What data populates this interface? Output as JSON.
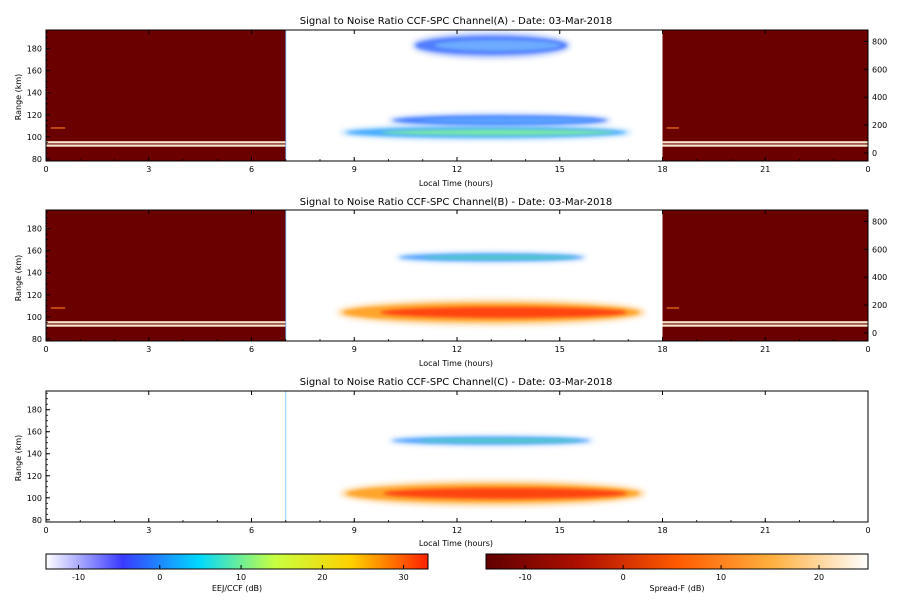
{
  "chart_data": [
    {
      "type": "heatmap",
      "title": "Signal to Noise Ratio CCF-SPC Channel(A) - Date: 03-Mar-2018",
      "xlabel": "Local Time (hours)",
      "ylabel": "Range (km)",
      "xlim": [
        0,
        24
      ],
      "ylim": [
        78,
        197
      ],
      "xticks": [
        "0",
        "3",
        "6",
        "9",
        "12",
        "15",
        "18",
        "21",
        "0"
      ],
      "yticks": [
        "80",
        "100",
        "120",
        "140",
        "160",
        "180"
      ],
      "y2ticks": [
        "0",
        "200",
        "400",
        "600",
        "800"
      ],
      "night_spans": [
        [
          0,
          7.0
        ],
        [
          18.0,
          24
        ]
      ],
      "blobs": [
        {
          "t0": 10.7,
          "t1": 15.3,
          "r": 183,
          "h": 18,
          "color": "#4a78ff",
          "core": "#70b0ff"
        },
        {
          "t0": 10.0,
          "t1": 16.5,
          "r": 115,
          "h": 9,
          "color": "#3f7cff",
          "core": "#60a8ff"
        },
        {
          "t0": 8.6,
          "t1": 17.1,
          "r": 104,
          "h": 10,
          "color": "#3fa8ff",
          "core": "#7fefa0"
        }
      ],
      "night_streaks": [
        92,
        95,
        108
      ]
    },
    {
      "type": "heatmap",
      "title": "Signal to Noise Ratio CCF-SPC Channel(B) - Date: 03-Mar-2018",
      "xlabel": "Local Time (hours)",
      "ylabel": "Range (km)",
      "xlim": [
        0,
        24
      ],
      "ylim": [
        78,
        197
      ],
      "xticks": [
        "0",
        "3",
        "6",
        "9",
        "12",
        "15",
        "18",
        "21",
        "0"
      ],
      "yticks": [
        "80",
        "100",
        "120",
        "140",
        "160",
        "180"
      ],
      "y2ticks": [
        "0",
        "200",
        "400",
        "600",
        "800"
      ],
      "night_spans": [
        [
          0,
          7.0
        ],
        [
          18.0,
          24
        ]
      ],
      "blobs": [
        {
          "t0": 8.5,
          "t1": 17.5,
          "r": 104,
          "h": 18,
          "color": "#ffa020",
          "core": "#ff3a10"
        },
        {
          "t0": 10.2,
          "t1": 15.8,
          "r": 154,
          "h": 7,
          "color": "#4fa0ff",
          "core": "#50d0c0"
        }
      ],
      "night_streaks": [
        92,
        95,
        108
      ]
    },
    {
      "type": "heatmap",
      "title": "Signal to Noise Ratio CCF-SPC Channel(C) - Date: 03-Mar-2018",
      "xlabel": "Local Time (hours)",
      "ylabel": "Range (km)",
      "xlim": [
        0,
        24
      ],
      "ylim": [
        78,
        197
      ],
      "xticks": [
        "0",
        "3",
        "6",
        "9",
        "12",
        "15",
        "18",
        "21",
        "0"
      ],
      "yticks": [
        "80",
        "100",
        "120",
        "140",
        "160",
        "180"
      ],
      "y2ticks": [],
      "night_spans": [],
      "blobs": [
        {
          "t0": 8.6,
          "t1": 17.5,
          "r": 104,
          "h": 18,
          "color": "#ffa020",
          "core": "#ff3a10"
        },
        {
          "t0": 10.0,
          "t1": 16.0,
          "r": 152,
          "h": 7,
          "color": "#4fa0ff",
          "core": "#50d0c0"
        }
      ],
      "night_streaks": []
    }
  ],
  "colorbars": [
    {
      "label": "EEJ/CCF (dB)",
      "range": [
        -14,
        33
      ],
      "ticks": [
        "-10",
        "0",
        "10",
        "20",
        "30"
      ],
      "tick_values": [
        -10,
        0,
        10,
        20,
        30
      ],
      "stops": [
        "#ffffff",
        "#3a3aff",
        "#00d8ff",
        "#c8ff40",
        "#ffd000",
        "#ff2000"
      ]
    },
    {
      "label": "Spread-F (dB)",
      "range": [
        -14,
        25
      ],
      "ticks": [
        "-10",
        "0",
        "10",
        "20"
      ],
      "tick_values": [
        -10,
        0,
        10,
        20
      ],
      "stops": [
        "#600000",
        "#b01000",
        "#ff5a00",
        "#ffb040",
        "#ffffff"
      ]
    }
  ]
}
